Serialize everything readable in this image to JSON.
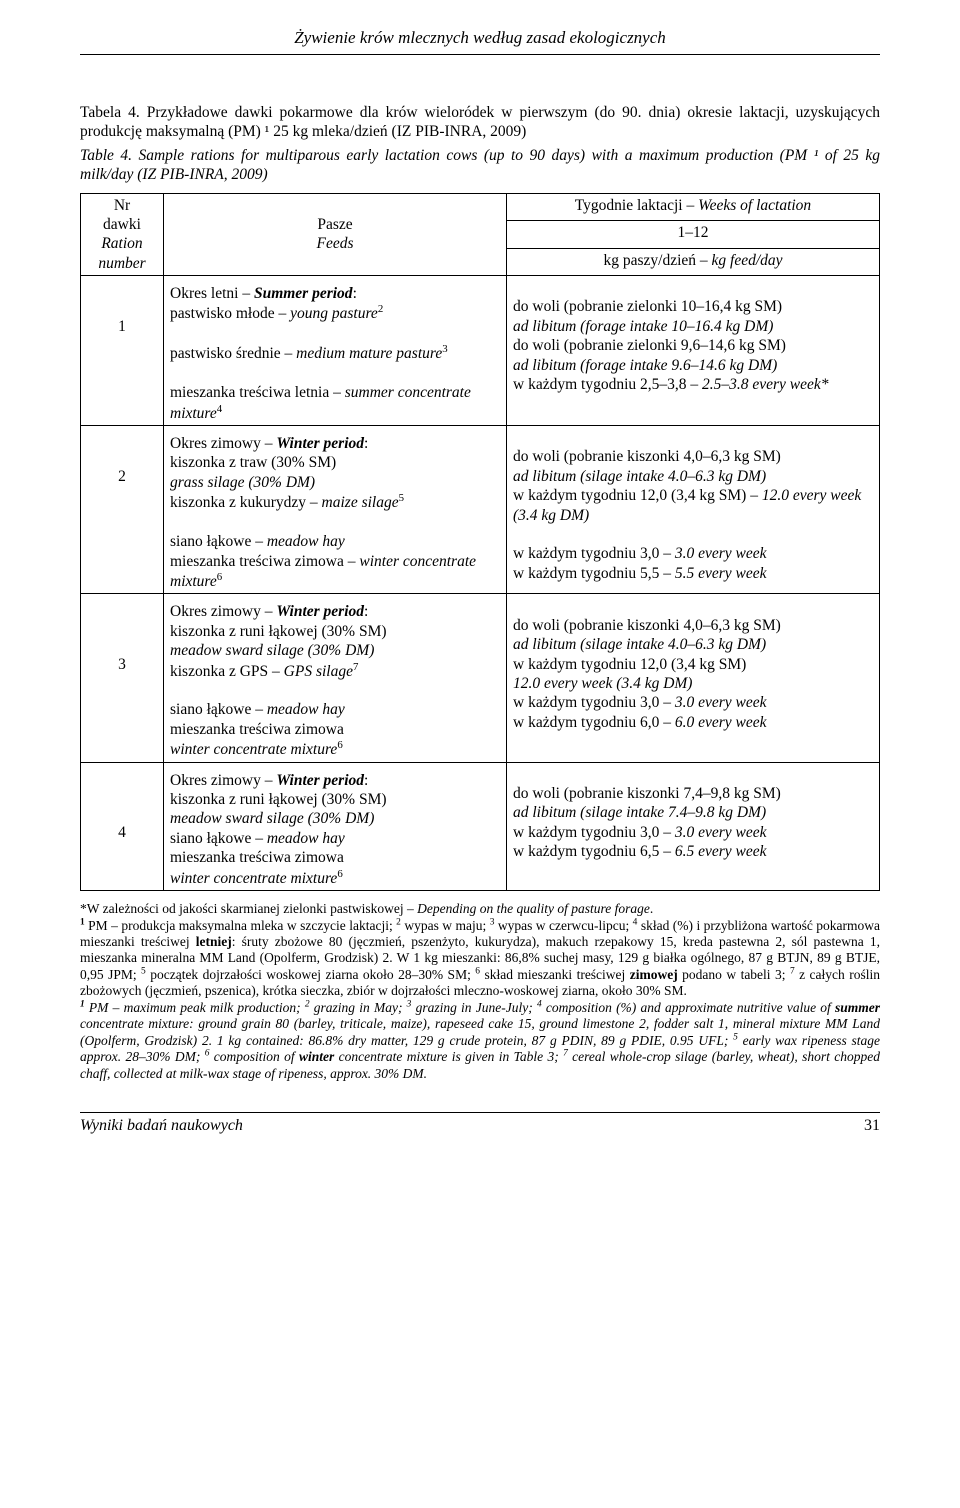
{
  "runningHead": "Żywienie krów mlecznych według zasad ekologicznych",
  "captionPl": "Tabela 4. Przykładowe dawki pokarmowe dla krów wieloródek w pierwszym (do 90. dnia) okresie laktacji, uzyskujących produkcję maksymalną (PM) ¹ 25 kg mleka/dzień (IZ PIB-INRA, 2009)",
  "captionEn": "Table 4. Sample rations for multiparous early lactation cows (up to 90 days) with a maximum production (PM ¹ of 25 kg milk/day (IZ PIB-INRA, 2009)",
  "header": {
    "col1_l1": "Nr",
    "col1_l2": "dawki",
    "col1_l3": "Ration",
    "col1_l4": "number",
    "col2_l1": "Pasze",
    "col2_l2": "Feeds",
    "col3_top": "Tygodnie laktacji – Weeks of lactation",
    "col3_mid": "1–12",
    "col3_bot": "kg paszy/dzień – kg feed/day"
  },
  "rows": {
    "r1": {
      "nr": "1",
      "left_hdr_pl": "Okres letni – ",
      "left_hdr_en": "Summer period",
      "f1_pl": "pastwisko młode – ",
      "f1_en": "young pasture",
      "f1_sup": "2",
      "f2_pl": "pastwisko średnie – ",
      "f2_en": "medium mature pasture",
      "f2_sup": "3",
      "f3_pl": "mieszanka treściwa letnia – ",
      "f3_en": "summer concentrate mixture",
      "f3_sup": "4",
      "v1a": "do woli (pobranie zielonki 10–16,4 kg SM)",
      "v1b": "ad libitum (forage intake 10–16.4 kg DM)",
      "v2a": "do woli (pobranie zielonki 9,6–14,6 kg SM)",
      "v2b": "ad libitum (forage intake 9.6–14.6 kg DM)",
      "v3a": "w każdym tygodniu 2,5–3,8 – ",
      "v3b": "2.5–3.8 every week*"
    },
    "r2": {
      "nr": "2",
      "left_hdr_pl": "Okres zimowy – ",
      "left_hdr_en": "Winter period",
      "f1_pl": "kiszonka z traw (30% SM)",
      "f1_en": "grass silage (30% DM)",
      "f2_pl": "kiszonka z kukurydzy – ",
      "f2_en": "maize silage",
      "f2_sup": "5",
      "f3_pl": "siano łąkowe – ",
      "f3_en": "meadow hay",
      "f4_pl": "mieszanka treściwa zimowa – ",
      "f4_en": "winter concentrate mixture",
      "f4_sup": "6",
      "v1a": "do woli (pobranie kiszonki 4,0–6,3 kg SM)",
      "v1b": "ad libitum (silage intake 4.0–6.3 kg DM)",
      "v2a": "w każdym tygodniu 12,0 (3,4 kg SM) –  ",
      "v2b": "12.0 every week (3.4 kg DM)",
      "v3a": "w każdym tygodniu 3,0 – ",
      "v3b": "3.0 every week",
      "v4a": "w każdym tygodniu 5,5 – ",
      "v4b": "5.5 every week"
    },
    "r3": {
      "nr": "3",
      "left_hdr_pl": "Okres zimowy – ",
      "left_hdr_en": "Winter period",
      "f1_pl": "kiszonka z runi łąkowej (30% SM)",
      "f1_en": "meadow sward silage (30% DM)",
      "f2_pl": "kiszonka z GPS – ",
      "f2_en": "GPS silage",
      "f2_sup": "7",
      "f3_pl": "siano łąkowe – ",
      "f3_en": "meadow hay",
      "f4_pl": "mieszanka treściwa zimowa",
      "f4_en": "winter concentrate mixture",
      "f4_sup": "6",
      "v1a": "do woli (pobranie kiszonki 4,0–6,3 kg SM)",
      "v1b": "ad libitum (silage intake 4.0–6.3 kg DM)",
      "v2a": "w każdym tygodniu 12,0 (3,4 kg SM)",
      "v2b": "12.0 every week (3.4 kg DM)",
      "v3a": "w każdym tygodniu 3,0 – ",
      "v3b": "3.0 every week",
      "v4a": "w każdym tygodniu 6,0 – ",
      "v4b": "6.0 every week"
    },
    "r4": {
      "nr": "4",
      "left_hdr_pl": "Okres zimowy – ",
      "left_hdr_en": "Winter period",
      "f1_pl": "kiszonka z runi łąkowej (30% SM)",
      "f1_en": "meadow sward silage (30% DM)",
      "f2_pl": "siano łąkowe – ",
      "f2_en": "meadow hay",
      "f3_pl": "mieszanka treściwa zimowa",
      "f3_en": "winter concentrate mixture",
      "f3_sup": "6",
      "v1a": "do woli (pobranie kiszonki 7,4–9,8 kg SM)",
      "v1b": "ad libitum (silage intake 7.4–9.8 kg DM)",
      "v2a": "w każdym tygodniu 3,0 – ",
      "v2b": "3.0 every week",
      "v3a": "w każdym tygodniu 6,5 – ",
      "v3b": "6.5 every week"
    }
  },
  "footnotePl": "*W zależności od jakości skarmianej zielonki pastwiskowej – Depending on the quality of pasture forage.\n¹ PM – produkcja maksymalna mleka w szczycie laktacji; ² wypas w maju; ³ wypas w czerwcu-lipcu; ⁴ skład (%) i przybliżona wartość pokarmowa mieszanki treściwej letniej: śruty zbożowe 80 (jęczmień, pszenżyto, kukurydza), makuch rzepakowy 15, kreda pastewna 2, sól pastewna 1, mieszanka mineralna MM Land (Opolferm, Grodzisk) 2.  W 1 kg mieszanki: 86,8% suchej masy, 129 g białka ogólnego, 87 g BTJN, 89 g BTJE, 0,95 JPM; ⁵ początek dojrzałości woskowej ziarna około 28–30%  SM; ⁶ skład mieszanki treściwej zimowej podano w tabeli 3; ⁷ z całych roślin zbożowych (jęczmień, pszenica), krótka sieczka, zbiór w dojrzałości mleczno-woskowej ziarna, około 30% SM.",
  "footnoteEn": "¹ PM – maximum peak milk production; ² grazing in May; ³ grazing in June-July; ⁴ composition (%) and approximate nutritive value of summer concentrate mixture: ground grain 80 (barley, triticale, maize), rapeseed cake 15, ground limestone 2, fodder salt 1, mineral mixture MM Land (Opolferm, Grodzisk) 2. 1 kg contained: 86.8% dry matter, 129 g crude protein, 87 g PDIN, 89 g PDIE, 0.95 UFL; ⁵ early wax ripeness stage approx. 28–30% DM; ⁶ composition of winter concentrate mixture is given in Table 3; ⁷ cereal whole-crop silage (barley, wheat), short chopped chaff, collected at milk-wax stage of ripeness, approx. 30% DM.",
  "footerLeft": "Wyniki badań naukowych",
  "footerRight": "31"
}
